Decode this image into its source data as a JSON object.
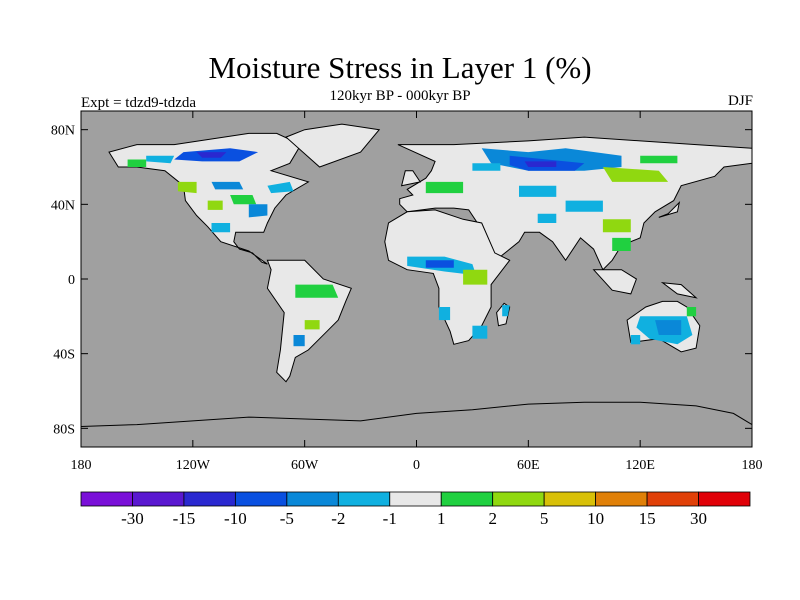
{
  "title": "Moisture Stress in Layer 1 (%)",
  "subtitle": "120kyr BP - 000kyr BP",
  "experiment": "Expt = tdzd9-tdzda",
  "season": "DJF",
  "lat_ticks": [
    {
      "value": 80,
      "label": "80N"
    },
    {
      "value": 40,
      "label": "40N"
    },
    {
      "value": 0,
      "label": "0"
    },
    {
      "value": -40,
      "label": "40S"
    },
    {
      "value": -80,
      "label": "80S"
    }
  ],
  "lon_ticks": [
    {
      "value": -180,
      "label": "180"
    },
    {
      "value": -120,
      "label": "120W"
    },
    {
      "value": -60,
      "label": "60W"
    },
    {
      "value": 0,
      "label": "0"
    },
    {
      "value": 60,
      "label": "60E"
    },
    {
      "value": 120,
      "label": "120E"
    },
    {
      "value": 180,
      "label": "180"
    }
  ],
  "colors": {
    "ocean": "#a0a0a0",
    "land_near_zero": "#e8e8e8",
    "coast": "#000000"
  },
  "colorbar": {
    "colors": [
      "#7a10d8",
      "#5a18d0",
      "#2a28d0",
      "#0a50e0",
      "#0a88d8",
      "#10b0e0",
      "#e8e8e8",
      "#20d040",
      "#90d810",
      "#d8c008",
      "#e08008",
      "#e04008",
      "#e00008"
    ],
    "labels": [
      "-30",
      "-15",
      "-10",
      "-5",
      "-2",
      "-1",
      "1",
      "2",
      "5",
      "10",
      "15",
      "30"
    ]
  },
  "regions": [
    {
      "fill": "#e8e8e8",
      "pts": [
        [
          -165,
          68
        ],
        [
          -150,
          72
        ],
        [
          -130,
          72
        ],
        [
          -110,
          75
        ],
        [
          -90,
          78
        ],
        [
          -75,
          78
        ],
        [
          -62,
          72
        ],
        [
          -68,
          62
        ],
        [
          -78,
          58
        ],
        [
          -58,
          52
        ],
        [
          -70,
          45
        ],
        [
          -76,
          38
        ],
        [
          -80,
          30
        ],
        [
          -82,
          25
        ],
        [
          -97,
          25
        ],
        [
          -98,
          20
        ],
        [
          -95,
          16
        ],
        [
          -88,
          14
        ],
        [
          -83,
          9
        ],
        [
          -80,
          8
        ],
        [
          -90,
          15
        ],
        [
          -105,
          20
        ],
        [
          -112,
          28
        ],
        [
          -118,
          34
        ],
        [
          -124,
          42
        ],
        [
          -125,
          50
        ],
        [
          -135,
          58
        ],
        [
          -150,
          60
        ],
        [
          -160,
          60
        ]
      ]
    },
    {
      "fill": "#e8e8e8",
      "pts": [
        [
          -80,
          10
        ],
        [
          -60,
          10
        ],
        [
          -50,
          0
        ],
        [
          -35,
          -5
        ],
        [
          -38,
          -12
        ],
        [
          -42,
          -22
        ],
        [
          -48,
          -28
        ],
        [
          -58,
          -38
        ],
        [
          -65,
          -42
        ],
        [
          -68,
          -52
        ],
        [
          -70,
          -55
        ],
        [
          -75,
          -50
        ],
        [
          -73,
          -38
        ],
        [
          -71,
          -18
        ],
        [
          -80,
          -5
        ],
        [
          -78,
          5
        ]
      ]
    },
    {
      "fill": "#e8e8e8",
      "pts": [
        [
          -10,
          72
        ],
        [
          20,
          72
        ],
        [
          60,
          74
        ],
        [
          90,
          76
        ],
        [
          120,
          74
        ],
        [
          150,
          72
        ],
        [
          180,
          70
        ],
        [
          180,
          62
        ],
        [
          165,
          60
        ],
        [
          160,
          55
        ],
        [
          142,
          50
        ],
        [
          138,
          42
        ],
        [
          128,
          36
        ],
        [
          122,
          30
        ],
        [
          120,
          22
        ],
        [
          110,
          18
        ],
        [
          105,
          10
        ],
        [
          100,
          5
        ],
        [
          95,
          16
        ],
        [
          88,
          22
        ],
        [
          80,
          10
        ],
        [
          73,
          20
        ],
        [
          66,
          25
        ],
        [
          58,
          25
        ],
        [
          55,
          20
        ],
        [
          45,
          12
        ],
        [
          38,
          15
        ],
        [
          34,
          28
        ],
        [
          28,
          37
        ],
        [
          20,
          38
        ],
        [
          10,
          38
        ],
        [
          -5,
          36
        ],
        [
          -9,
          40
        ],
        [
          -9,
          43
        ],
        [
          -2,
          45
        ],
        [
          -5,
          48
        ],
        [
          5,
          54
        ],
        [
          8,
          58
        ],
        [
          10,
          63
        ]
      ]
    },
    {
      "fill": "#e8e8e8",
      "pts": [
        [
          -17,
          20
        ],
        [
          -15,
          30
        ],
        [
          -5,
          36
        ],
        [
          10,
          37
        ],
        [
          25,
          32
        ],
        [
          35,
          30
        ],
        [
          42,
          14
        ],
        [
          50,
          10
        ],
        [
          40,
          -3
        ],
        [
          40,
          -15
        ],
        [
          35,
          -25
        ],
        [
          28,
          -33
        ],
        [
          20,
          -35
        ],
        [
          18,
          -28
        ],
        [
          12,
          -15
        ],
        [
          12,
          -5
        ],
        [
          9,
          3
        ],
        [
          -5,
          5
        ],
        [
          -15,
          10
        ]
      ]
    },
    {
      "fill": "#e8e8e8",
      "pts": [
        [
          113,
          -22
        ],
        [
          123,
          -15
        ],
        [
          132,
          -12
        ],
        [
          140,
          -12
        ],
        [
          145,
          -15
        ],
        [
          152,
          -25
        ],
        [
          150,
          -37
        ],
        [
          142,
          -39
        ],
        [
          130,
          -32
        ],
        [
          115,
          -34
        ]
      ]
    },
    {
      "fill": "#e8e8e8",
      "pts": [
        [
          44,
          -25
        ],
        [
          48,
          -24
        ],
        [
          50,
          -15
        ],
        [
          47,
          -13
        ],
        [
          43,
          -18
        ]
      ]
    },
    {
      "fill": "#e8e8e8",
      "pts": [
        [
          -52,
          60
        ],
        [
          -30,
          68
        ],
        [
          -20,
          80
        ],
        [
          -40,
          83
        ],
        [
          -60,
          80
        ],
        [
          -70,
          76
        ]
      ]
    },
    {
      "fill": "#e8e8e8",
      "pts": [
        [
          -8,
          50
        ],
        [
          -6,
          58
        ],
        [
          -2,
          58
        ],
        [
          2,
          52
        ]
      ]
    },
    {
      "fill": "#e8e8e8",
      "pts": [
        [
          130,
          33
        ],
        [
          135,
          35
        ],
        [
          141,
          41
        ],
        [
          140,
          36
        ]
      ]
    },
    {
      "fill": "#e8e8e8",
      "pts": [
        [
          95,
          5
        ],
        [
          105,
          -6
        ],
        [
          115,
          -8
        ],
        [
          118,
          0
        ],
        [
          110,
          5
        ]
      ]
    },
    {
      "fill": "#e8e8e8",
      "pts": [
        [
          132,
          -2
        ],
        [
          142,
          -3
        ],
        [
          150,
          -10
        ],
        [
          140,
          -8
        ]
      ]
    },
    {
      "fill": "#0a50e0",
      "pts": [
        [
          -125,
          68
        ],
        [
          -100,
          70
        ],
        [
          -85,
          68
        ],
        [
          -95,
          63
        ],
        [
          -115,
          63
        ],
        [
          -130,
          64
        ]
      ]
    },
    {
      "fill": "#2a28d0",
      "pts": [
        [
          -118,
          68
        ],
        [
          -102,
          68
        ],
        [
          -105,
          65
        ],
        [
          -115,
          65
        ]
      ]
    },
    {
      "fill": "#10b0e0",
      "pts": [
        [
          -145,
          66
        ],
        [
          -130,
          66
        ],
        [
          -132,
          62
        ],
        [
          -145,
          63
        ]
      ]
    },
    {
      "fill": "#0a88d8",
      "pts": [
        [
          -110,
          52
        ],
        [
          -95,
          52
        ],
        [
          -93,
          48
        ],
        [
          -108,
          48
        ]
      ]
    },
    {
      "fill": "#10b0e0",
      "pts": [
        [
          -80,
          50
        ],
        [
          -68,
          52
        ],
        [
          -66,
          47
        ],
        [
          -78,
          46
        ]
      ]
    },
    {
      "fill": "#90d810",
      "pts": [
        [
          -128,
          52
        ],
        [
          -118,
          52
        ],
        [
          -118,
          46
        ],
        [
          -128,
          47
        ]
      ]
    },
    {
      "fill": "#20d040",
      "pts": [
        [
          -100,
          45
        ],
        [
          -88,
          45
        ],
        [
          -86,
          40
        ],
        [
          -98,
          40
        ]
      ]
    },
    {
      "fill": "#0a88d8",
      "pts": [
        [
          -90,
          40
        ],
        [
          -80,
          40
        ],
        [
          -80,
          34
        ],
        [
          -90,
          33
        ]
      ]
    },
    {
      "fill": "#90d810",
      "pts": [
        [
          -112,
          42
        ],
        [
          -104,
          42
        ],
        [
          -104,
          37
        ],
        [
          -112,
          37
        ]
      ]
    },
    {
      "fill": "#10b0e0",
      "pts": [
        [
          -110,
          30
        ],
        [
          -100,
          30
        ],
        [
          -100,
          25
        ],
        [
          -110,
          25
        ]
      ]
    },
    {
      "fill": "#20d040",
      "pts": [
        [
          -155,
          64
        ],
        [
          -145,
          64
        ],
        [
          -145,
          60
        ],
        [
          -155,
          60
        ]
      ]
    },
    {
      "fill": "#20d040",
      "pts": [
        [
          -65,
          -3
        ],
        [
          -45,
          -3
        ],
        [
          -42,
          -10
        ],
        [
          -65,
          -10
        ]
      ]
    },
    {
      "fill": "#0a88d8",
      "pts": [
        [
          -66,
          -30
        ],
        [
          -60,
          -30
        ],
        [
          -60,
          -36
        ],
        [
          -66,
          -36
        ]
      ]
    },
    {
      "fill": "#90d810",
      "pts": [
        [
          -60,
          -22
        ],
        [
          -52,
          -22
        ],
        [
          -52,
          -27
        ],
        [
          -60,
          -27
        ]
      ]
    },
    {
      "fill": "#10b0e0",
      "pts": [
        [
          -5,
          12
        ],
        [
          15,
          12
        ],
        [
          30,
          8
        ],
        [
          32,
          2
        ],
        [
          15,
          4
        ],
        [
          -5,
          7
        ]
      ]
    },
    {
      "fill": "#0a50e0",
      "pts": [
        [
          5,
          10
        ],
        [
          20,
          10
        ],
        [
          20,
          6
        ],
        [
          5,
          6
        ]
      ]
    },
    {
      "fill": "#90d810",
      "pts": [
        [
          25,
          5
        ],
        [
          38,
          5
        ],
        [
          38,
          -3
        ],
        [
          25,
          -3
        ]
      ]
    },
    {
      "fill": "#10b0e0",
      "pts": [
        [
          12,
          -15
        ],
        [
          18,
          -15
        ],
        [
          18,
          -22
        ],
        [
          12,
          -22
        ]
      ]
    },
    {
      "fill": "#10b0e0",
      "pts": [
        [
          30,
          -25
        ],
        [
          38,
          -25
        ],
        [
          38,
          -32
        ],
        [
          30,
          -32
        ]
      ]
    },
    {
      "fill": "#10b0e0",
      "pts": [
        [
          46,
          -14
        ],
        [
          50,
          -14
        ],
        [
          49,
          -20
        ],
        [
          46,
          -20
        ]
      ]
    },
    {
      "fill": "#0a88d8",
      "pts": [
        [
          35,
          70
        ],
        [
          60,
          68
        ],
        [
          80,
          70
        ],
        [
          110,
          66
        ],
        [
          110,
          60
        ],
        [
          90,
          58
        ],
        [
          60,
          58
        ],
        [
          40,
          62
        ]
      ]
    },
    {
      "fill": "#0a50e0",
      "pts": [
        [
          50,
          66
        ],
        [
          70,
          64
        ],
        [
          90,
          62
        ],
        [
          85,
          58
        ],
        [
          60,
          58
        ],
        [
          50,
          61
        ]
      ]
    },
    {
      "fill": "#2a28d0",
      "pts": [
        [
          58,
          63
        ],
        [
          75,
          63
        ],
        [
          75,
          60
        ],
        [
          60,
          60
        ]
      ]
    },
    {
      "fill": "#10b0e0",
      "pts": [
        [
          30,
          62
        ],
        [
          45,
          62
        ],
        [
          45,
          58
        ],
        [
          30,
          58
        ]
      ]
    },
    {
      "fill": "#90d810",
      "pts": [
        [
          100,
          60
        ],
        [
          130,
          58
        ],
        [
          135,
          52
        ],
        [
          105,
          52
        ]
      ]
    },
    {
      "fill": "#20d040",
      "pts": [
        [
          120,
          66
        ],
        [
          140,
          66
        ],
        [
          140,
          62
        ],
        [
          120,
          62
        ]
      ]
    },
    {
      "fill": "#10b0e0",
      "pts": [
        [
          55,
          50
        ],
        [
          75,
          50
        ],
        [
          75,
          44
        ],
        [
          55,
          44
        ]
      ]
    },
    {
      "fill": "#20d040",
      "pts": [
        [
          5,
          52
        ],
        [
          25,
          52
        ],
        [
          25,
          46
        ],
        [
          5,
          46
        ]
      ]
    },
    {
      "fill": "#10b0e0",
      "pts": [
        [
          80,
          42
        ],
        [
          100,
          42
        ],
        [
          100,
          36
        ],
        [
          80,
          36
        ]
      ]
    },
    {
      "fill": "#90d810",
      "pts": [
        [
          100,
          32
        ],
        [
          115,
          32
        ],
        [
          115,
          25
        ],
        [
          100,
          25
        ]
      ]
    },
    {
      "fill": "#20d040",
      "pts": [
        [
          105,
          22
        ],
        [
          115,
          22
        ],
        [
          115,
          15
        ],
        [
          105,
          15
        ]
      ]
    },
    {
      "fill": "#10b0e0",
      "pts": [
        [
          65,
          35
        ],
        [
          75,
          35
        ],
        [
          75,
          30
        ],
        [
          65,
          30
        ]
      ]
    },
    {
      "fill": "#10b0e0",
      "pts": [
        [
          120,
          -20
        ],
        [
          145,
          -20
        ],
        [
          148,
          -30
        ],
        [
          140,
          -35
        ],
        [
          125,
          -32
        ],
        [
          118,
          -26
        ]
      ]
    },
    {
      "fill": "#0a88d8",
      "pts": [
        [
          128,
          -22
        ],
        [
          142,
          -22
        ],
        [
          142,
          -30
        ],
        [
          130,
          -30
        ]
      ]
    },
    {
      "fill": "#10b0e0",
      "pts": [
        [
          115,
          -30
        ],
        [
          120,
          -30
        ],
        [
          120,
          -35
        ],
        [
          115,
          -35
        ]
      ]
    },
    {
      "fill": "#20d040",
      "pts": [
        [
          145,
          -15
        ],
        [
          150,
          -15
        ],
        [
          150,
          -20
        ],
        [
          145,
          -20
        ]
      ]
    }
  ],
  "outlines": [
    [
      [
        -180,
        -79
      ],
      [
        -150,
        -78
      ],
      [
        -120,
        -76
      ],
      [
        -90,
        -74
      ],
      [
        -60,
        -75
      ],
      [
        -30,
        -76
      ],
      [
        0,
        -72
      ],
      [
        30,
        -70
      ],
      [
        60,
        -67
      ],
      [
        90,
        -66
      ],
      [
        120,
        -66
      ],
      [
        150,
        -68
      ],
      [
        170,
        -72
      ],
      [
        180,
        -78
      ]
    ]
  ]
}
